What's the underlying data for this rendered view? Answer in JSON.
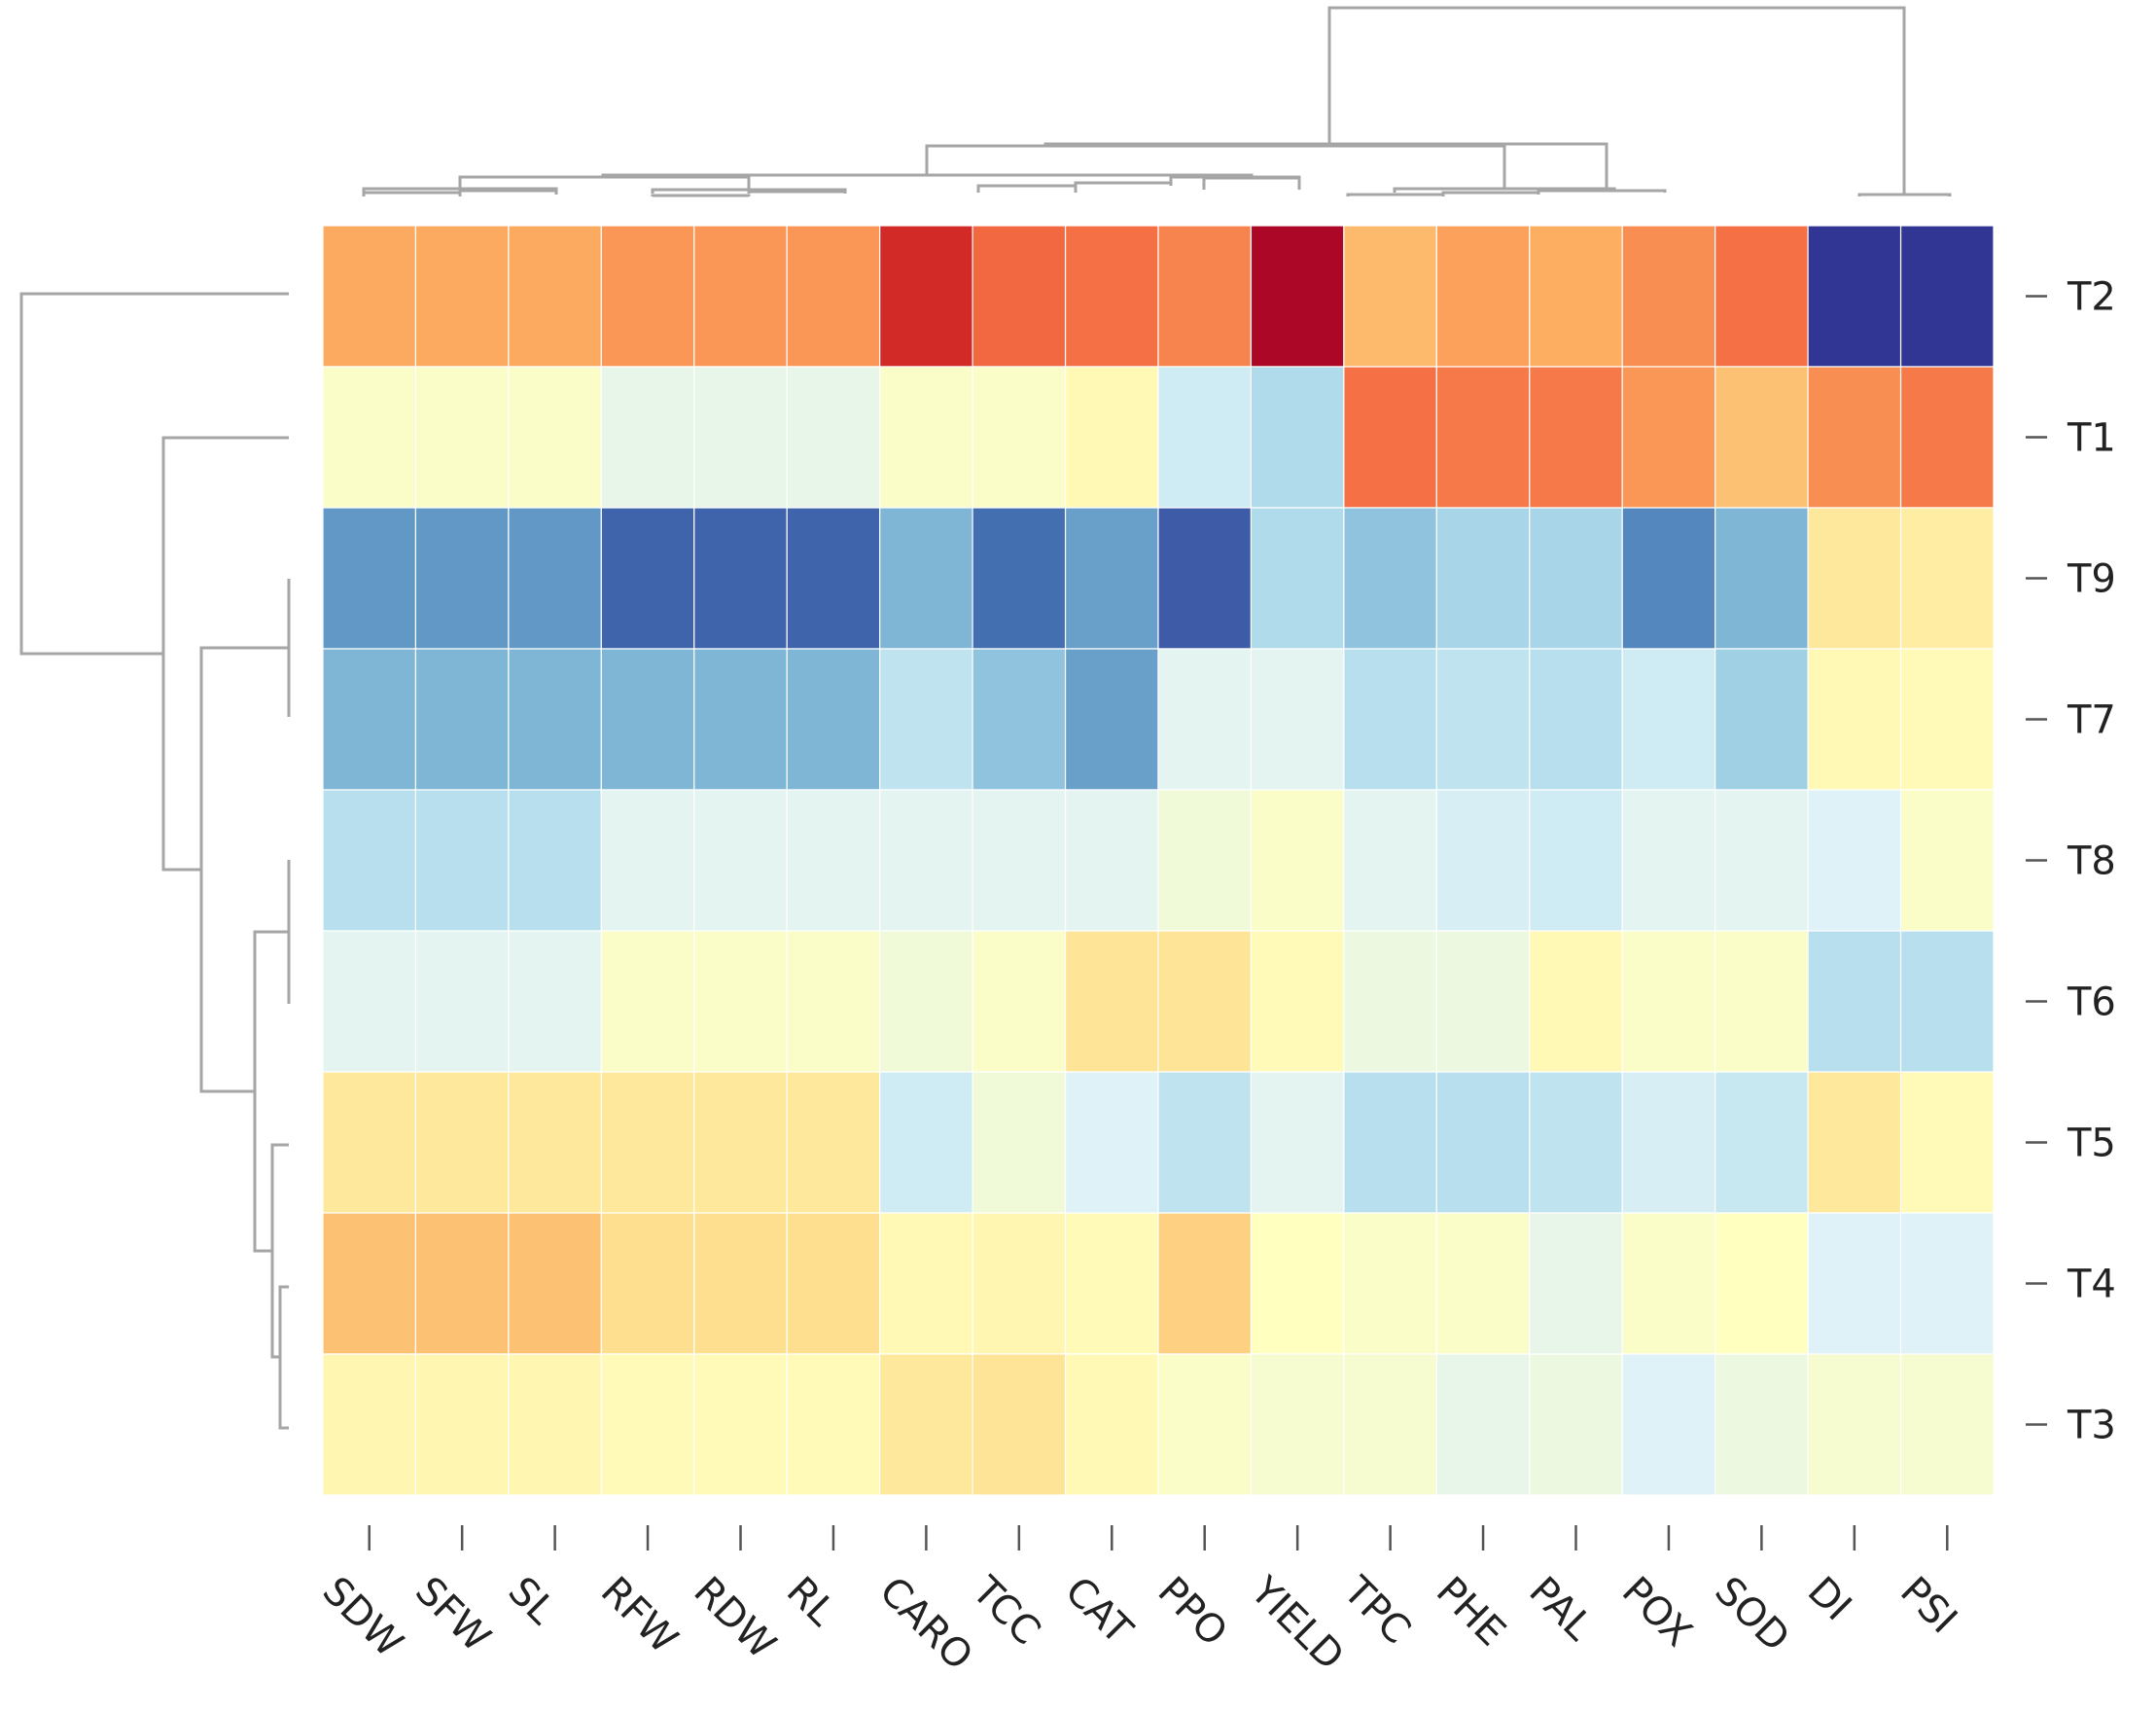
{
  "chart_data": {
    "type": "heatmap",
    "title": "",
    "xlabel": "",
    "ylabel": "",
    "columns": [
      "SDW",
      "SFW",
      "SL",
      "RFW",
      "RDW",
      "RL",
      "CARO",
      "TCC",
      "CAT",
      "PPO",
      "YIELD",
      "TPC",
      "PHE",
      "PAL",
      "POX",
      "SOD",
      "DI",
      "PSI"
    ],
    "rows": [
      "T2",
      "T1",
      "T9",
      "T7",
      "T8",
      "T6",
      "T5",
      "T4",
      "T3"
    ],
    "values": [
      [
        0.7,
        0.7,
        0.7,
        0.8,
        0.8,
        0.8,
        1.4,
        1.05,
        1.0,
        0.9,
        1.65,
        0.6,
        0.75,
        0.68,
        0.85,
        1.0,
        -1.7,
        -1.7
      ],
      [
        -0.05,
        -0.05,
        -0.05,
        -0.25,
        -0.25,
        -0.25,
        -0.05,
        -0.05,
        0.07,
        -0.45,
        -0.65,
        1.0,
        0.95,
        0.95,
        0.8,
        0.55,
        0.85,
        0.95
      ],
      [
        -1.15,
        -1.15,
        -1.15,
        -1.45,
        -1.45,
        -1.45,
        -0.95,
        -1.4,
        -1.1,
        -1.5,
        -0.65,
        -0.85,
        -0.7,
        -0.7,
        -1.25,
        -0.95,
        0.25,
        0.2
      ],
      [
        -0.95,
        -0.95,
        -0.95,
        -0.95,
        -0.95,
        -0.95,
        -0.55,
        -0.85,
        -1.1,
        -0.3,
        -0.3,
        -0.6,
        -0.55,
        -0.6,
        -0.45,
        -0.75,
        0.07,
        0.05
      ],
      [
        -0.6,
        -0.6,
        -0.6,
        -0.3,
        -0.3,
        -0.3,
        -0.3,
        -0.3,
        -0.3,
        -0.15,
        -0.05,
        -0.3,
        -0.4,
        -0.45,
        -0.3,
        -0.3,
        -0.35,
        -0.05
      ],
      [
        -0.3,
        -0.3,
        -0.3,
        -0.05,
        -0.05,
        -0.05,
        -0.15,
        -0.05,
        0.3,
        0.3,
        0.05,
        -0.2,
        -0.2,
        0.07,
        -0.05,
        -0.05,
        -0.6,
        -0.6
      ],
      [
        0.25,
        0.25,
        0.25,
        0.25,
        0.25,
        0.25,
        -0.45,
        -0.15,
        -0.35,
        -0.55,
        -0.3,
        -0.6,
        -0.6,
        -0.55,
        -0.4,
        -0.5,
        0.25,
        0.05
      ],
      [
        0.55,
        0.55,
        0.55,
        0.35,
        0.35,
        0.35,
        0.07,
        0.1,
        0.05,
        0.45,
        0.0,
        -0.05,
        -0.05,
        -0.25,
        -0.05,
        0.0,
        -0.35,
        -0.35
      ],
      [
        0.1,
        0.1,
        0.1,
        0.06,
        0.06,
        0.06,
        0.25,
        0.3,
        0.07,
        -0.05,
        -0.1,
        -0.1,
        -0.25,
        -0.2,
        -0.35,
        -0.2,
        -0.1,
        -0.1
      ]
    ],
    "colormap": "RdYlBu_r",
    "zlim": [
      -1.7,
      1.7
    ],
    "colors": {
      "low": "#313695",
      "mid": "#ffffbf",
      "high": "#a50026"
    },
    "row_dendrogram": true,
    "column_dendrogram": true,
    "legend": "none"
  }
}
